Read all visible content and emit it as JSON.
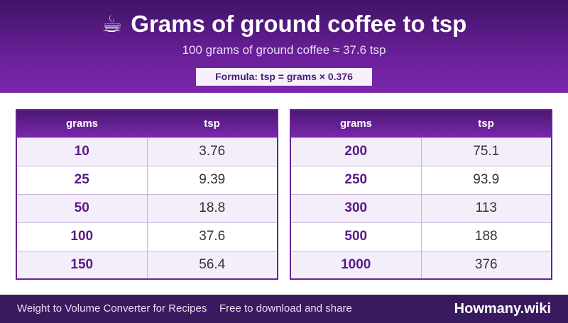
{
  "header": {
    "icon": "☕",
    "title": "Grams of ground coffee to tsp",
    "subtitle": "100 grams of ground coffee ≈ 37.6 tsp",
    "formula": "Formula: tsp = grams × 0.376"
  },
  "tables": [
    {
      "columns": [
        "grams",
        "tsp"
      ],
      "rows": [
        [
          10,
          3.76
        ],
        [
          25,
          9.39
        ],
        [
          50,
          18.8
        ],
        [
          100,
          37.6
        ],
        [
          150,
          56.4
        ]
      ]
    },
    {
      "columns": [
        "grams",
        "tsp"
      ],
      "rows": [
        [
          200,
          75.1
        ],
        [
          250,
          93.9
        ],
        [
          300,
          113
        ],
        [
          500,
          188
        ],
        [
          1000,
          376
        ]
      ]
    }
  ],
  "footer": {
    "left": "Weight to Volume Converter for Recipes",
    "middle": "Free to download and share",
    "brand": "Howmany.wiki"
  }
}
